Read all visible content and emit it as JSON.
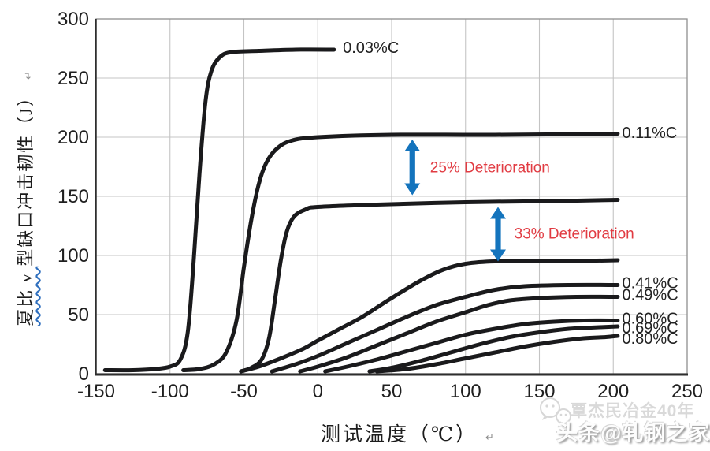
{
  "chart_data": {
    "type": "line",
    "title": "",
    "xlabel": "测试温度（℃）",
    "ylabel": "夏比 v 型缺口冲击韧性（J）",
    "ylabel_wavy_part": "夏比 v ",
    "ylabel_rest_part": "型缺口冲击韧性（J）",
    "xlim": [
      -150,
      250
    ],
    "ylim": [
      0,
      300
    ],
    "x_ticks": [
      -150,
      -100,
      -50,
      0,
      50,
      100,
      150,
      200,
      250
    ],
    "y_ticks": [
      0,
      50,
      100,
      150,
      200,
      250,
      300
    ],
    "grid": true,
    "legend_position": "labels-at-curve-ends",
    "curve_color": "#1a1a1c",
    "series": [
      {
        "name": "0.03%C",
        "label_at": [
          17,
          276
        ],
        "upper_shelf_J": 274,
        "transition_mid_C": -82,
        "points": [
          [
            -144,
            3
          ],
          [
            -125,
            3
          ],
          [
            -110,
            4
          ],
          [
            -100,
            6
          ],
          [
            -93,
            12
          ],
          [
            -88,
            35
          ],
          [
            -84,
            95
          ],
          [
            -80,
            170
          ],
          [
            -76,
            230
          ],
          [
            -72,
            256
          ],
          [
            -66,
            268
          ],
          [
            -58,
            272
          ],
          [
            -40,
            273
          ],
          [
            -15,
            274
          ],
          [
            11,
            274
          ]
        ]
      },
      {
        "name": "0.11%C",
        "label_at": [
          206,
          204
        ],
        "upper_shelf_J": 203,
        "transition_mid_C": -50,
        "points": [
          [
            -91,
            3
          ],
          [
            -80,
            4
          ],
          [
            -70,
            8
          ],
          [
            -62,
            18
          ],
          [
            -55,
            45
          ],
          [
            -50,
            90
          ],
          [
            -45,
            130
          ],
          [
            -40,
            160
          ],
          [
            -35,
            178
          ],
          [
            -28,
            190
          ],
          [
            -18,
            197
          ],
          [
            0,
            200
          ],
          [
            50,
            202
          ],
          [
            120,
            202
          ],
          [
            203,
            203
          ]
        ]
      },
      {
        "name": "",
        "label_at": null,
        "upper_shelf_J": 147,
        "transition_mid_C": -28,
        "points": [
          [
            -52,
            2
          ],
          [
            -45,
            5
          ],
          [
            -38,
            12
          ],
          [
            -33,
            30
          ],
          [
            -29,
            62
          ],
          [
            -25,
            96
          ],
          [
            -21,
            120
          ],
          [
            -16,
            133
          ],
          [
            -8,
            139
          ],
          [
            0,
            141
          ],
          [
            40,
            143
          ],
          [
            100,
            145
          ],
          [
            160,
            146
          ],
          [
            203,
            147
          ]
        ]
      },
      {
        "name": "",
        "label_at": null,
        "upper_shelf_J": 96,
        "transition_mid_C": 30,
        "points": [
          [
            -52,
            2
          ],
          [
            -40,
            6
          ],
          [
            -25,
            13
          ],
          [
            -10,
            21
          ],
          [
            0,
            28
          ],
          [
            15,
            38
          ],
          [
            30,
            48
          ],
          [
            50,
            64
          ],
          [
            70,
            79
          ],
          [
            85,
            88
          ],
          [
            100,
            93
          ],
          [
            120,
            95
          ],
          [
            160,
            95
          ],
          [
            203,
            96
          ]
        ]
      },
      {
        "name": "0.41%C",
        "label_at": [
          206,
          77
        ],
        "upper_shelf_J": 75,
        "transition_mid_C": 45,
        "points": [
          [
            -31,
            2
          ],
          [
            -15,
            8
          ],
          [
            0,
            15
          ],
          [
            20,
            26
          ],
          [
            40,
            37
          ],
          [
            60,
            48
          ],
          [
            80,
            58
          ],
          [
            100,
            65
          ],
          [
            120,
            71
          ],
          [
            140,
            74
          ],
          [
            170,
            75
          ],
          [
            203,
            75
          ]
        ]
      },
      {
        "name": "0.49%C",
        "label_at": [
          206,
          67
        ],
        "upper_shelf_J": 65,
        "transition_mid_C": 60,
        "points": [
          [
            -12,
            2
          ],
          [
            0,
            6
          ],
          [
            20,
            14
          ],
          [
            40,
            24
          ],
          [
            60,
            34
          ],
          [
            80,
            44
          ],
          [
            100,
            52
          ],
          [
            115,
            58
          ],
          [
            130,
            62
          ],
          [
            150,
            64
          ],
          [
            175,
            65
          ],
          [
            203,
            65
          ]
        ]
      },
      {
        "name": "0.60%C",
        "label_at": [
          206,
          47
        ],
        "upper_shelf_J": 45,
        "transition_mid_C": 80,
        "points": [
          [
            5,
            2
          ],
          [
            20,
            6
          ],
          [
            40,
            12
          ],
          [
            60,
            19
          ],
          [
            80,
            26
          ],
          [
            100,
            33
          ],
          [
            120,
            38
          ],
          [
            140,
            42
          ],
          [
            160,
            44
          ],
          [
            180,
            45
          ],
          [
            203,
            45
          ]
        ]
      },
      {
        "name": "0.69%C",
        "label_at": [
          206,
          39
        ],
        "upper_shelf_J": 40,
        "transition_mid_C": 100,
        "points": [
          [
            35,
            2
          ],
          [
            50,
            5
          ],
          [
            70,
            11
          ],
          [
            90,
            18
          ],
          [
            110,
            25
          ],
          [
            130,
            31
          ],
          [
            150,
            35
          ],
          [
            170,
            38
          ],
          [
            185,
            39
          ],
          [
            203,
            40
          ]
        ]
      },
      {
        "name": "0.80%C",
        "label_at": [
          206,
          30
        ],
        "upper_shelf_J": 32,
        "transition_mid_C": 120,
        "points": [
          [
            40,
            2
          ],
          [
            60,
            4
          ],
          [
            80,
            8
          ],
          [
            100,
            13
          ],
          [
            120,
            18
          ],
          [
            140,
            23
          ],
          [
            160,
            27
          ],
          [
            180,
            30
          ],
          [
            195,
            31
          ],
          [
            203,
            32
          ]
        ]
      }
    ],
    "annotations": [
      {
        "text": "25% Deterioration",
        "at": [
          76,
          175
        ],
        "color": "#e13b42"
      },
      {
        "text": "33% Deterioration",
        "at": [
          133,
          119
        ],
        "color": "#e13b42"
      }
    ],
    "arrows": [
      {
        "x_C": 64,
        "top_J": 198,
        "bottom_J": 151,
        "color": "#1474bd"
      },
      {
        "x_C": 122,
        "top_J": 141,
        "bottom_J": 95,
        "color": "#1474bd"
      }
    ]
  },
  "watermarks": {
    "light": "覃杰民冶金40年",
    "emboss": "头条@轧钢之家"
  },
  "marks": {
    "return_symbol": "↵"
  },
  "colors": {
    "curve": "#1a1a1c",
    "grid": "#c4c4c4",
    "frame": "#8f8f8f",
    "axis": "#2e2e2e",
    "tick_text": "#1f1f1f",
    "label_text": "#222222",
    "blue_arrow": "#1474bd",
    "red_annotation": "#e13b42"
  }
}
